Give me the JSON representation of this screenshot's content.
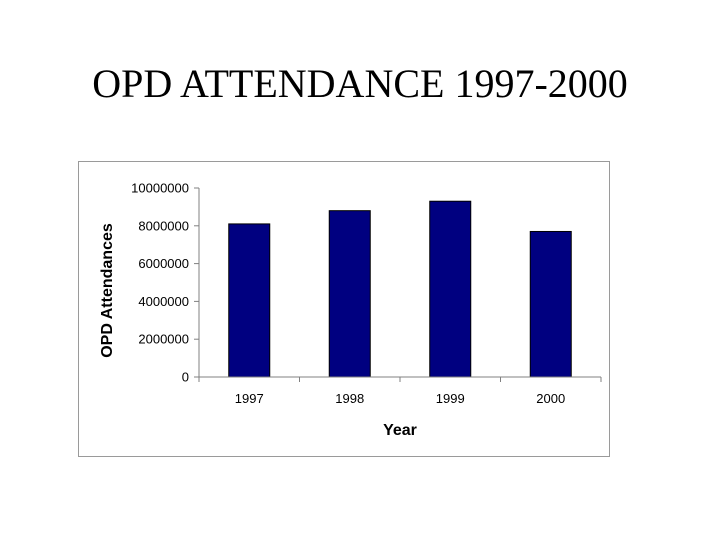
{
  "slide": {
    "title": "OPD ATTENDANCE 1997-2000"
  },
  "colors": {
    "bar": "#000080",
    "axis": "#808080"
  },
  "chart_data": {
    "type": "bar",
    "title": "",
    "categories": [
      "1997",
      "1998",
      "1999",
      "2000"
    ],
    "values": [
      8100000,
      8800000,
      9300000,
      7700000
    ],
    "xlabel": "Year",
    "ylabel": "OPD Attendances",
    "ylim": [
      0,
      10000000
    ],
    "yticks": [
      "0",
      "2000000",
      "4000000",
      "6000000",
      "8000000",
      "10000000"
    ],
    "grid": false,
    "legend": "none"
  }
}
